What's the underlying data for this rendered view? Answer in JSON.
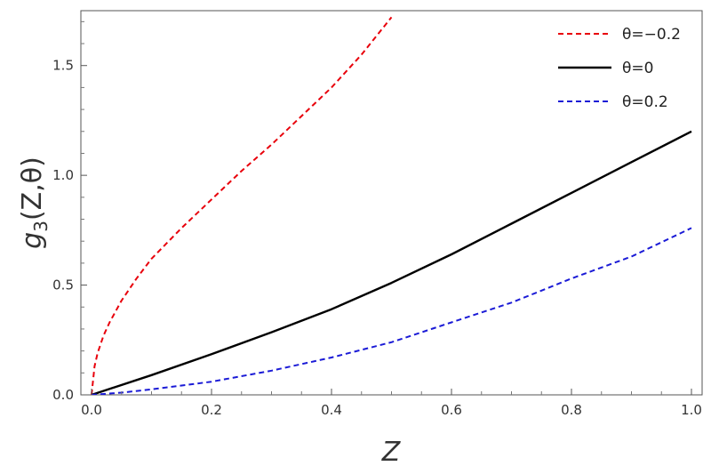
{
  "chart_data": {
    "type": "line",
    "xlabel": "Z",
    "ylabel": {
      "base": "g",
      "subscript": "3",
      "args": "(Z,θ)"
    },
    "xlim": [
      0,
      1
    ],
    "ylim": [
      0,
      1.75
    ],
    "xticks": [
      {
        "value": 0.0,
        "label": "0.0"
      },
      {
        "value": 0.2,
        "label": "0.2"
      },
      {
        "value": 0.4,
        "label": "0.4"
      },
      {
        "value": 0.6,
        "label": "0.6"
      },
      {
        "value": 0.8,
        "label": "0.8"
      },
      {
        "value": 1.0,
        "label": "1.0"
      }
    ],
    "yticks": [
      {
        "value": 0.0,
        "label": "0.0"
      },
      {
        "value": 0.5,
        "label": "0.5"
      },
      {
        "value": 1.0,
        "label": "1.0"
      },
      {
        "value": 1.5,
        "label": "1.5"
      }
    ],
    "grid": false,
    "legend_position": "top-right",
    "series": [
      {
        "name": "θ=−0.2",
        "color": "#e8000b",
        "dash": "dashed",
        "x": [
          0.0,
          0.005,
          0.01,
          0.02,
          0.03,
          0.05,
          0.075,
          0.1,
          0.15,
          0.2,
          0.25,
          0.3,
          0.35,
          0.4,
          0.45,
          0.5
        ],
        "y": [
          0.0,
          0.13,
          0.19,
          0.27,
          0.33,
          0.43,
          0.53,
          0.62,
          0.76,
          0.89,
          1.02,
          1.14,
          1.27,
          1.4,
          1.55,
          1.72
        ]
      },
      {
        "name": "θ=0",
        "color": "#000000",
        "dash": "solid",
        "x": [
          0.0,
          0.1,
          0.2,
          0.3,
          0.4,
          0.5,
          0.6,
          0.7,
          0.8,
          0.9,
          1.0
        ],
        "y": [
          0.0,
          0.09,
          0.185,
          0.285,
          0.39,
          0.51,
          0.64,
          0.78,
          0.92,
          1.06,
          1.2
        ]
      },
      {
        "name": "θ=0.2",
        "color": "#1b1bd6",
        "dash": "dashed",
        "x": [
          0.0,
          0.05,
          0.1,
          0.2,
          0.3,
          0.4,
          0.5,
          0.6,
          0.7,
          0.8,
          0.9,
          1.0
        ],
        "y": [
          0.0,
          0.01,
          0.025,
          0.06,
          0.11,
          0.17,
          0.24,
          0.33,
          0.42,
          0.53,
          0.63,
          0.76
        ]
      }
    ]
  }
}
